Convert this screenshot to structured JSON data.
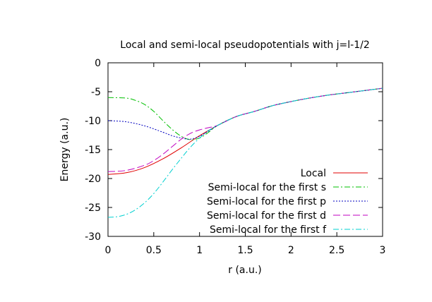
{
  "chart_data": {
    "type": "line",
    "title": "Local and semi-local pseudopotentials with j=l-1/2",
    "xlabel": "r (a.u.)",
    "ylabel": "Energy (a.u.)",
    "xlim": [
      0,
      3
    ],
    "ylim": [
      -30,
      0
    ],
    "xticks": [
      0,
      0.5,
      1,
      1.5,
      2,
      2.5,
      3
    ],
    "xtick_labels": [
      "0",
      "0.5",
      "1",
      "1.5",
      "2",
      "2.5",
      "3"
    ],
    "yticks": [
      -30,
      -25,
      -20,
      -15,
      -10,
      -5,
      0
    ],
    "ytick_labels": [
      "-30",
      "-25",
      "-20",
      "-15",
      "-10",
      "-5",
      "0"
    ],
    "grid": false,
    "legend_position": "bottom-right",
    "series": [
      {
        "name": "Local",
        "color": "#e00000",
        "dash": "solid",
        "x": [
          0,
          0.2,
          0.4,
          0.6,
          0.8,
          1.0,
          1.2,
          1.4,
          1.6,
          1.8,
          2.0,
          2.2,
          2.4,
          2.6,
          2.8,
          3.0
        ],
        "y": [
          -19.3,
          -19.0,
          -18.1,
          -16.6,
          -14.7,
          -12.6,
          -10.8,
          -9.3,
          -8.4,
          -7.4,
          -6.7,
          -6.1,
          -5.6,
          -5.2,
          -4.8,
          -4.4
        ]
      },
      {
        "name": "Semi-local for the first s",
        "color": "#00c000",
        "dash": "dash-dot",
        "x": [
          0,
          0.2,
          0.3,
          0.4,
          0.5,
          0.6,
          0.7,
          0.8,
          0.9,
          1.0,
          1.1,
          1.2,
          1.4,
          1.6,
          1.8,
          2.0,
          2.2,
          2.4,
          2.6,
          2.8,
          3.0
        ],
        "y": [
          -6.0,
          -6.1,
          -6.5,
          -7.2,
          -8.4,
          -10.0,
          -11.5,
          -12.7,
          -13.3,
          -13.0,
          -12.0,
          -10.8,
          -9.3,
          -8.4,
          -7.4,
          -6.7,
          -6.1,
          -5.6,
          -5.2,
          -4.8,
          -4.4
        ]
      },
      {
        "name": "Semi-local for the first p",
        "color": "#0000c0",
        "dash": "dotted",
        "x": [
          0,
          0.2,
          0.4,
          0.6,
          0.7,
          0.8,
          0.9,
          1.0,
          1.1,
          1.2,
          1.4,
          1.6,
          1.8,
          2.0,
          2.2,
          2.4,
          2.6,
          2.8,
          3.0
        ],
        "y": [
          -10.0,
          -10.2,
          -10.9,
          -12.0,
          -12.6,
          -13.0,
          -13.2,
          -12.7,
          -11.8,
          -10.8,
          -9.3,
          -8.4,
          -7.4,
          -6.7,
          -6.1,
          -5.6,
          -5.2,
          -4.8,
          -4.4
        ]
      },
      {
        "name": "Semi-local for the first d",
        "color": "#c000c0",
        "dash": "long-dash",
        "x": [
          0,
          0.2,
          0.4,
          0.5,
          0.6,
          0.7,
          0.8,
          0.9,
          1.0,
          1.1,
          1.2,
          1.4,
          1.6,
          1.8,
          2.0,
          2.2,
          2.4,
          2.6,
          2.8,
          3.0
        ],
        "y": [
          -18.8,
          -18.6,
          -17.7,
          -16.9,
          -15.8,
          -14.5,
          -13.2,
          -12.2,
          -11.6,
          -11.2,
          -10.8,
          -9.3,
          -8.4,
          -7.4,
          -6.7,
          -6.1,
          -5.6,
          -5.2,
          -4.8,
          -4.4
        ]
      },
      {
        "name": "Semi-local for the first f",
        "color": "#00d0d0",
        "dash": "dash-dot",
        "x": [
          0,
          0.1,
          0.2,
          0.3,
          0.4,
          0.5,
          0.6,
          0.7,
          0.8,
          0.9,
          1.0,
          1.1,
          1.2,
          1.4,
          1.6,
          1.8,
          2.0,
          2.2,
          2.4,
          2.6,
          2.8,
          3.0
        ],
        "y": [
          -26.7,
          -26.6,
          -26.2,
          -25.4,
          -24.2,
          -22.6,
          -20.6,
          -18.5,
          -16.5,
          -14.6,
          -13.0,
          -11.7,
          -10.8,
          -9.3,
          -8.4,
          -7.4,
          -6.7,
          -6.1,
          -5.6,
          -5.2,
          -4.8,
          -4.4
        ]
      }
    ]
  }
}
